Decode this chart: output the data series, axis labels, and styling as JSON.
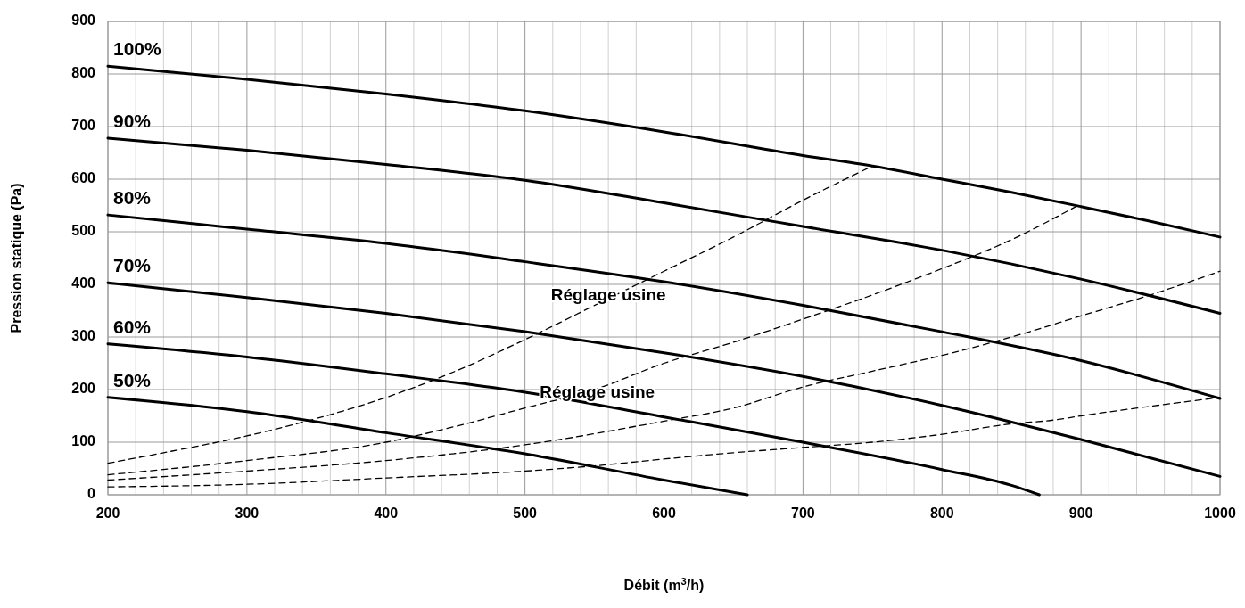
{
  "chart_data": {
    "type": "line",
    "xlabel": "Débit (m$^{3}$/h)",
    "ylabel": "Pression statique (Pa)",
    "xlim": [
      200,
      1000
    ],
    "ylim": [
      0,
      900
    ],
    "xticks": [
      200,
      {
        "value": 220,
        "label": null
      },
      {
        "value": 240,
        "label": null
      },
      {
        "value": 260,
        "label": null
      },
      {
        "value": 280,
        "label": null
      },
      300,
      {
        "value": 320,
        "label": null
      },
      {
        "value": 340,
        "label": null
      },
      {
        "value": 360,
        "label": null
      },
      {
        "value": 380,
        "label": null
      },
      400,
      {
        "value": 420,
        "label": null
      },
      {
        "value": 440,
        "label": null
      },
      {
        "value": 460,
        "label": null
      },
      {
        "value": 480,
        "label": null
      },
      500,
      {
        "value": 520,
        "label": null
      },
      {
        "value": 540,
        "label": null
      },
      {
        "value": 560,
        "label": null
      },
      {
        "value": 580,
        "label": null
      },
      600,
      {
        "value": 620,
        "label": null
      },
      {
        "value": 640,
        "label": null
      },
      {
        "value": 660,
        "label": null
      },
      {
        "value": 680,
        "label": null
      },
      700,
      {
        "value": 720,
        "label": null
      },
      {
        "value": 740,
        "label": null
      },
      {
        "value": 760,
        "label": null
      },
      {
        "value": 780,
        "label": null
      },
      800,
      {
        "value": 820,
        "label": null
      },
      {
        "value": 840,
        "label": null
      },
      {
        "value": 860,
        "label": null
      },
      {
        "value": 880,
        "label": null
      },
      900,
      {
        "value": 920,
        "label": null
      },
      {
        "value": 940,
        "label": null
      },
      {
        "value": 960,
        "label": null
      },
      {
        "value": 980,
        "label": null
      },
      1000
    ],
    "yticks": [
      0,
      100,
      200,
      300,
      400,
      500,
      600,
      700,
      800,
      900
    ],
    "grid": true,
    "marker": "none",
    "series": [
      {
        "name": "100%",
        "color": "#000000",
        "line_style": "solid",
        "x": [
          200,
          300,
          400,
          500,
          600,
          700,
          750,
          800,
          850,
          900,
          950,
          1000
        ],
        "values": [
          815,
          790,
          762,
          730,
          690,
          645,
          625,
          600,
          575,
          548,
          520,
          490
        ]
      },
      {
        "name": "90%",
        "color": "#000000",
        "line_style": "solid",
        "x": [
          200,
          300,
          400,
          500,
          600,
          700,
          800,
          900,
          1000
        ],
        "values": [
          678,
          655,
          628,
          598,
          555,
          510,
          465,
          410,
          345
        ]
      },
      {
        "name": "80%",
        "color": "#000000",
        "line_style": "solid",
        "x": [
          200,
          300,
          400,
          500,
          600,
          700,
          800,
          900,
          1000
        ],
        "values": [
          532,
          505,
          478,
          443,
          405,
          360,
          310,
          255,
          183
        ]
      },
      {
        "name": "70%",
        "color": "#000000",
        "line_style": "solid",
        "x": [
          200,
          300,
          400,
          500,
          600,
          700,
          800,
          900,
          1000
        ],
        "values": [
          403,
          375,
          345,
          310,
          270,
          225,
          170,
          105,
          35
        ]
      },
      {
        "name": "60%",
        "color": "#000000",
        "line_style": "solid",
        "x": [
          200,
          300,
          400,
          500,
          600,
          700,
          800,
          850,
          870
        ],
        "values": [
          287,
          262,
          230,
          195,
          148,
          100,
          48,
          18,
          0
        ]
      },
      {
        "name": "50%",
        "color": "#000000",
        "line_style": "solid",
        "x": [
          200,
          300,
          400,
          500,
          600,
          660
        ],
        "values": [
          185,
          158,
          118,
          78,
          28,
          0
        ]
      },
      {
        "color": "#000000",
        "line_style": "dashed",
        "x": [
          200,
          250,
          300,
          350,
          400,
          450,
          500,
          550,
          600,
          650,
          700,
          750
        ],
        "values": [
          60,
          85,
          112,
          145,
          185,
          235,
          295,
          360,
          425,
          490,
          560,
          625
        ]
      },
      {
        "color": "#000000",
        "line_style": "dashed",
        "x": [
          200,
          300,
          400,
          450,
          500,
          550,
          600,
          650,
          700,
          750,
          800,
          850,
          897
        ],
        "values": [
          38,
          65,
          100,
          130,
          165,
          200,
          250,
          290,
          334,
          380,
          430,
          485,
          549
        ]
      },
      {
        "color": "#000000",
        "line_style": "dashed",
        "x": [
          200,
          300,
          400,
          500,
          600,
          650,
          700,
          750,
          800,
          850,
          900,
          950,
          1000
        ],
        "values": [
          28,
          45,
          65,
          95,
          140,
          165,
          205,
          235,
          265,
          300,
          340,
          380,
          425
        ]
      },
      {
        "color": "#000000",
        "line_style": "dashed",
        "x": [
          200,
          300,
          400,
          500,
          550,
          600,
          650,
          700,
          750,
          800,
          850,
          880,
          900,
          1000
        ],
        "values": [
          15,
          20,
          32,
          45,
          55,
          68,
          80,
          90,
          100,
          115,
          135,
          142,
          150,
          185
        ]
      }
    ],
    "annotations": [
      "Réglage usine",
      "Réglage usine"
    ]
  }
}
